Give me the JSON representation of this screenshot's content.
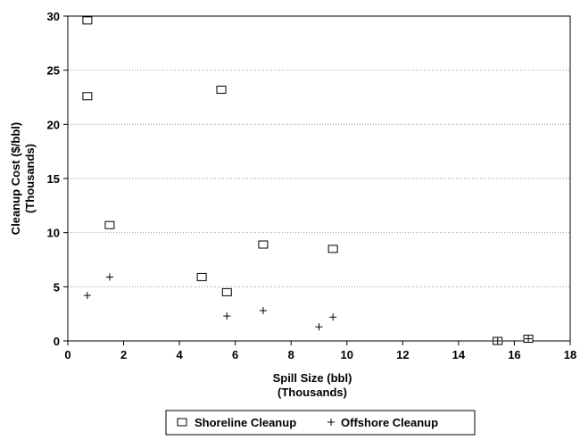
{
  "chart_data": {
    "type": "scatter",
    "title": "",
    "xlabel": [
      "Spill Size (bbl)",
      "(Thousands)"
    ],
    "ylabel": [
      "Cleanup Cost ($/bbl)",
      "(Thousands)"
    ],
    "xlim": [
      0,
      18
    ],
    "ylim": [
      0,
      30
    ],
    "x_ticks": [
      0,
      2,
      4,
      6,
      8,
      10,
      12,
      14,
      16,
      18
    ],
    "y_ticks": [
      0,
      5,
      10,
      15,
      20,
      25,
      30
    ],
    "x_tick_labels": [
      "0",
      "2",
      "4",
      "6",
      "8",
      "10",
      "12",
      "14",
      "16",
      "18"
    ],
    "y_tick_labels": [
      "0",
      "5",
      "10",
      "15",
      "20",
      "25",
      "30"
    ],
    "grid": "horizontal",
    "legend_position": "bottom",
    "series": [
      {
        "name": "Shoreline Cleanup",
        "marker": "square",
        "color": "#000000",
        "points": [
          [
            0.7,
            29.6
          ],
          [
            0.7,
            22.6
          ],
          [
            1.5,
            10.7
          ],
          [
            5.5,
            23.2
          ],
          [
            4.8,
            5.9
          ],
          [
            5.7,
            4.5
          ],
          [
            7.0,
            8.9
          ],
          [
            9.5,
            8.5
          ],
          [
            15.4,
            0.0
          ],
          [
            16.5,
            0.2
          ]
        ]
      },
      {
        "name": "Offshore Cleanup",
        "marker": "plus",
        "color": "#000000",
        "points": [
          [
            0.7,
            4.2
          ],
          [
            1.5,
            5.9
          ],
          [
            5.7,
            2.3
          ],
          [
            7.0,
            2.8
          ],
          [
            9.0,
            1.3
          ],
          [
            9.5,
            2.2
          ],
          [
            15.4,
            0.0
          ],
          [
            16.5,
            0.2
          ]
        ]
      }
    ]
  }
}
